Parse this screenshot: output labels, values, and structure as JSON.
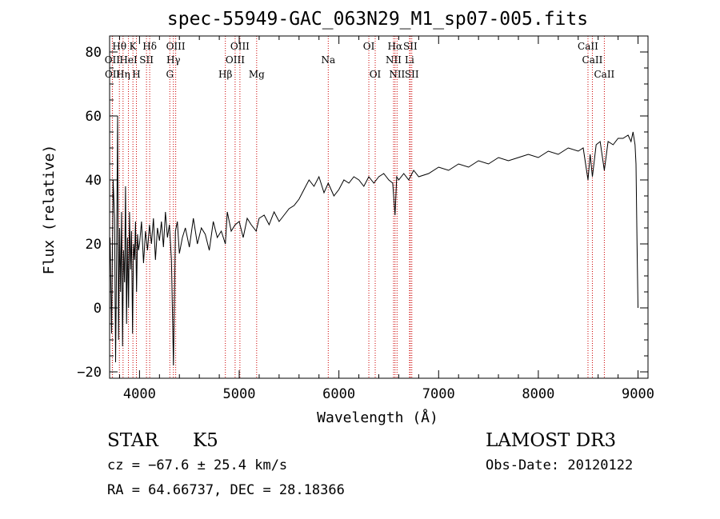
{
  "chart_data": {
    "type": "line",
    "title": "spec-55949-GAC_063N29_M1_sp07-005.fits",
    "xlabel": "Wavelength (Å)",
    "ylabel": "Flux (relative)",
    "xlim": [
      3700,
      9100
    ],
    "ylim": [
      -22,
      85
    ],
    "x_ticks": [
      4000,
      5000,
      6000,
      7000,
      8000,
      9000
    ],
    "y_ticks": [
      -20,
      0,
      20,
      40,
      60,
      80
    ],
    "grid": false,
    "line_color": "#000000",
    "marker_color": "#cc0000",
    "series": [
      {
        "name": "flux",
        "x": [
          3705,
          3720,
          3735,
          3750,
          3760,
          3770,
          3780,
          3790,
          3800,
          3810,
          3820,
          3830,
          3840,
          3850,
          3860,
          3870,
          3880,
          3890,
          3900,
          3910,
          3920,
          3930,
          3940,
          3950,
          3960,
          3970,
          3980,
          3990,
          4000,
          4020,
          4040,
          4060,
          4080,
          4100,
          4120,
          4140,
          4160,
          4180,
          4200,
          4220,
          4240,
          4260,
          4280,
          4300,
          4320,
          4340,
          4360,
          4380,
          4400,
          4430,
          4460,
          4500,
          4540,
          4580,
          4620,
          4660,
          4700,
          4740,
          4780,
          4820,
          4861,
          4880,
          4920,
          4960,
          5000,
          5040,
          5080,
          5120,
          5170,
          5200,
          5250,
          5300,
          5350,
          5400,
          5450,
          5500,
          5550,
          5600,
          5650,
          5700,
          5750,
          5800,
          5850,
          5893,
          5950,
          6000,
          6050,
          6100,
          6150,
          6200,
          6250,
          6300,
          6350,
          6400,
          6450,
          6500,
          6540,
          6563,
          6580,
          6600,
          6650,
          6700,
          6750,
          6800,
          6900,
          7000,
          7100,
          7200,
          7300,
          7400,
          7500,
          7600,
          7700,
          7800,
          7900,
          8000,
          8100,
          8200,
          8300,
          8400,
          8450,
          8498,
          8520,
          8542,
          8580,
          8620,
          8662,
          8700,
          8750,
          8800,
          8850,
          8900,
          8930,
          8950,
          8970,
          8980,
          8990,
          9000
        ],
        "y": [
          22,
          -8,
          40,
          28,
          -17,
          15,
          60,
          -10,
          25,
          5,
          30,
          -12,
          18,
          8,
          38,
          -5,
          22,
          0,
          30,
          12,
          24,
          -8,
          20,
          15,
          27,
          5,
          23,
          18,
          20,
          27,
          14,
          24,
          18,
          26,
          20,
          28,
          15,
          25,
          21,
          27,
          19,
          30,
          22,
          26,
          15,
          -18,
          24,
          27,
          17,
          22,
          25,
          19,
          28,
          20,
          25,
          23,
          18,
          27,
          22,
          24,
          20,
          30,
          24,
          26,
          27,
          22,
          28,
          26,
          24,
          28,
          29,
          26,
          30,
          27,
          29,
          31,
          32,
          34,
          37,
          40,
          38,
          41,
          36,
          39,
          35,
          37,
          40,
          39,
          41,
          40,
          38,
          41,
          39,
          41,
          42,
          40,
          39,
          29,
          41,
          40,
          42,
          40,
          43,
          41,
          42,
          44,
          43,
          45,
          44,
          46,
          45,
          47,
          46,
          47,
          48,
          47,
          49,
          48,
          50,
          49,
          50,
          40,
          48,
          41,
          51,
          52,
          43,
          52,
          51,
          53,
          53,
          54,
          52,
          55,
          51,
          45,
          20,
          0
        ]
      }
    ],
    "spectral_lines": [
      {
        "label": "Hθ",
        "wavelength": 3798,
        "row": 1
      },
      {
        "label": "OII",
        "wavelength": 3727,
        "row": 2
      },
      {
        "label": "OII",
        "wavelength": 3729,
        "row": 3
      },
      {
        "label": "K",
        "wavelength": 3934,
        "row": 1
      },
      {
        "label": "HeI",
        "wavelength": 3889,
        "row": 2
      },
      {
        "label": "Hη",
        "wavelength": 3835,
        "row": 3
      },
      {
        "label": "Hδ",
        "wavelength": 4102,
        "row": 1
      },
      {
        "label": "SII",
        "wavelength": 4070,
        "row": 2
      },
      {
        "label": "H",
        "wavelength": 3969,
        "row": 3
      },
      {
        "label": "OIII",
        "wavelength": 4363,
        "row": 1
      },
      {
        "label": "Hγ",
        "wavelength": 4340,
        "row": 2
      },
      {
        "label": "G",
        "wavelength": 4304,
        "row": 3
      },
      {
        "label": "OIII",
        "wavelength": 5007,
        "row": 1
      },
      {
        "label": "OIII",
        "wavelength": 4959,
        "row": 2
      },
      {
        "label": "Hβ",
        "wavelength": 4861,
        "row": 3
      },
      {
        "label": "Mg",
        "wavelength": 5175,
        "row": 3
      },
      {
        "label": "Na",
        "wavelength": 5893,
        "row": 2
      },
      {
        "label": "OI",
        "wavelength": 6300,
        "row": 1
      },
      {
        "label": "OI",
        "wavelength": 6364,
        "row": 3
      },
      {
        "label": "Hα",
        "wavelength": 6563,
        "row": 1
      },
      {
        "label": "NII",
        "wavelength": 6548,
        "row": 2
      },
      {
        "label": "NII",
        "wavelength": 6583,
        "row": 3
      },
      {
        "label": "SII",
        "wavelength": 6716,
        "row": 1
      },
      {
        "label": "Li",
        "wavelength": 6708,
        "row": 2
      },
      {
        "label": "SII",
        "wavelength": 6731,
        "row": 3
      },
      {
        "label": "CaII",
        "wavelength": 8498,
        "row": 1
      },
      {
        "label": "CaII",
        "wavelength": 8542,
        "row": 2
      },
      {
        "label": "CaII",
        "wavelength": 8662,
        "row": 3
      }
    ]
  },
  "info": {
    "class": "STAR",
    "subclass": "K5",
    "survey": "LAMOST DR3",
    "velocity": "cz = −67.6 ± 25.4 km/s",
    "obs_date": "Obs-Date: 20120122",
    "coords": "RA =  64.66737, DEC =  28.18366"
  }
}
